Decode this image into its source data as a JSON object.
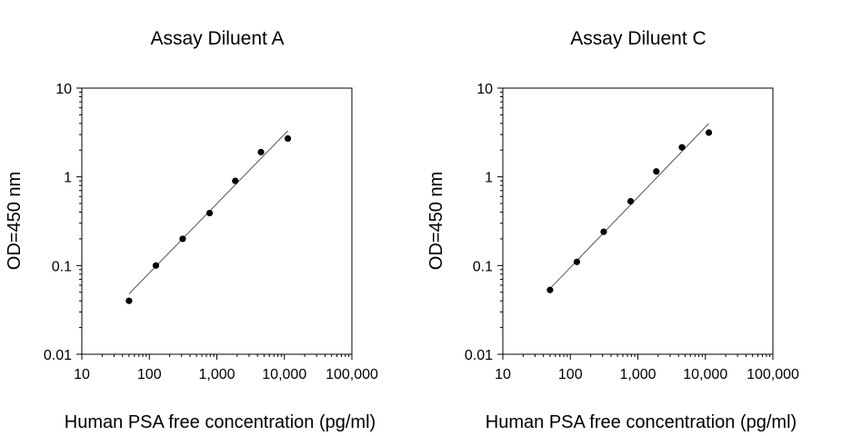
{
  "chart_data": [
    {
      "type": "scatter",
      "title": "Assay Diluent A",
      "xlabel": "Human PSA free concentration (pg/ml)",
      "ylabel": "OD=450 nm",
      "xscale": "log",
      "yscale": "log",
      "xlim": [
        10,
        100000
      ],
      "ylim": [
        0.01,
        10
      ],
      "x_ticks": [
        "10",
        "100",
        "1,000",
        "10,000",
        "100,000"
      ],
      "y_ticks": [
        "10",
        "1",
        "0.1",
        "0.01"
      ],
      "grid": false,
      "series": [
        {
          "x": [
            50,
            125,
            312,
            781,
            1875,
            4500,
            11250
          ],
          "y": [
            0.04,
            0.1,
            0.2,
            0.39,
            0.9,
            1.9,
            2.7
          ]
        }
      ],
      "fit_line": {
        "x": [
          50,
          11250
        ],
        "y": [
          0.048,
          3.3
        ]
      }
    },
    {
      "type": "scatter",
      "title": "Assay Diluent C",
      "xlabel": "Human PSA free concentration (pg/ml)",
      "ylabel": "OD=450 nm",
      "xscale": "log",
      "yscale": "log",
      "xlim": [
        10,
        100000
      ],
      "ylim": [
        0.01,
        10
      ],
      "x_ticks": [
        "10",
        "100",
        "1,000",
        "10,000",
        "100,000"
      ],
      "y_ticks": [
        "10",
        "1",
        "0.1",
        "0.01"
      ],
      "grid": false,
      "series": [
        {
          "x": [
            50,
            125,
            312,
            781,
            1875,
            4500,
            11250
          ],
          "y": [
            0.053,
            0.11,
            0.24,
            0.53,
            1.15,
            2.15,
            3.15
          ]
        }
      ],
      "fit_line": {
        "x": [
          50,
          11250
        ],
        "y": [
          0.055,
          4.0
        ]
      }
    }
  ]
}
